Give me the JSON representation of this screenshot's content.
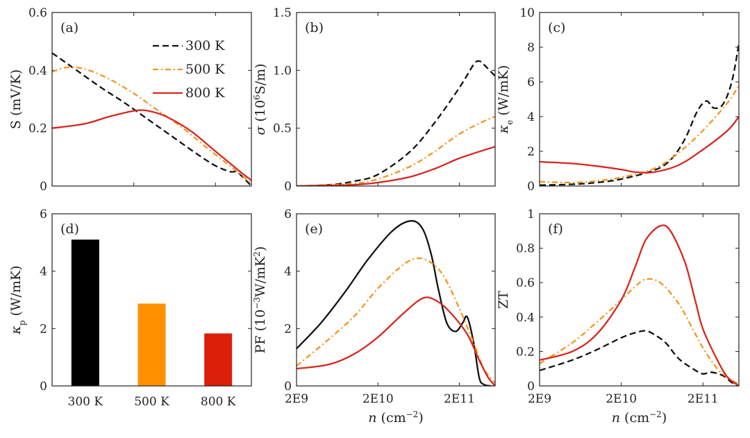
{
  "chart_data": {
    "type": "multi-panel",
    "series_styles": [
      {
        "name": "300 K",
        "color": "#111111",
        "dash": "dashed"
      },
      {
        "name": "500 K",
        "color": "#f7941d",
        "dash": "dashdot"
      },
      {
        "name": "800 K",
        "color": "#d7261e",
        "dash": "solid"
      }
    ],
    "panels": [
      {
        "id": "a",
        "label": "(a)",
        "type": "line",
        "xscale": "log",
        "xlim": [
          2000000000.0,
          550000000000.0
        ],
        "ylim": [
          0,
          0.6
        ],
        "ylabel": "S (mV/K)",
        "yticks": [
          0,
          0.2,
          0.4,
          0.6
        ],
        "yticklabels": [
          "0",
          "0.2",
          "0.4",
          "0.6"
        ],
        "xticks": [
          2000000000.0,
          20000000000.0,
          200000000000.0
        ],
        "xticklabels": [],
        "legend": [
          "300 K",
          "500 K",
          "800 K"
        ],
        "series": [
          {
            "name": "300 K",
            "x": [
              2000000000.0,
              4000000000.0,
              8000000000.0,
              15000000000.0,
              30000000000.0,
              60000000000.0,
              120000000000.0,
              200000000000.0,
              300000000000.0,
              350000000000.0,
              400000000000.0,
              550000000000.0
            ],
            "y": [
              0.46,
              0.4,
              0.34,
              0.29,
              0.23,
              0.17,
              0.11,
              0.07,
              0.05,
              0.05,
              0.04,
              0.0
            ]
          },
          {
            "name": "500 K",
            "x": [
              2000000000.0,
              3000000000.0,
              5000000000.0,
              10000000000.0,
              20000000000.0,
              40000000000.0,
              80000000000.0,
              160000000000.0,
              300000000000.0,
              550000000000.0
            ],
            "y": [
              0.395,
              0.41,
              0.405,
              0.37,
              0.32,
              0.26,
              0.2,
              0.13,
              0.07,
              0.01
            ]
          },
          {
            "name": "800 K",
            "x": [
              2000000000.0,
              5000000000.0,
              10000000000.0,
              20000000000.0,
              30000000000.0,
              50000000000.0,
              100000000000.0,
              200000000000.0,
              400000000000.0,
              550000000000.0
            ],
            "y": [
              0.2,
              0.215,
              0.24,
              0.26,
              0.26,
              0.24,
              0.19,
              0.12,
              0.05,
              0.02
            ]
          }
        ]
      },
      {
        "id": "b",
        "label": "(b)",
        "type": "line",
        "xscale": "log",
        "xlim": [
          2000000000.0,
          550000000000.0
        ],
        "ylim": [
          0,
          1.5
        ],
        "ylabel_parts": [
          {
            "t": "σ",
            "it": true
          },
          {
            "t": " (10"
          },
          {
            "t": "6",
            "sup": true
          },
          {
            "t": "S/m)"
          }
        ],
        "yticks": [
          0,
          0.5,
          1.0,
          1.5
        ],
        "yticklabels": [
          "0",
          "0.5",
          "1.0",
          "1.5"
        ],
        "xticks": [
          2000000000.0,
          20000000000.0,
          200000000000.0
        ],
        "xticklabels": [],
        "series": [
          {
            "name": "300 K",
            "x": [
              2000000000.0,
              5000000000.0,
              10000000000.0,
              20000000000.0,
              50000000000.0,
              100000000000.0,
              200000000000.0,
              300000000000.0,
              350000000000.0,
              400000000000.0,
              550000000000.0
            ],
            "y": [
              0.0,
              0.01,
              0.04,
              0.1,
              0.3,
              0.55,
              0.85,
              1.05,
              1.08,
              1.05,
              0.95
            ]
          },
          {
            "name": "500 K",
            "x": [
              2000000000.0,
              5000000000.0,
              10000000000.0,
              20000000000.0,
              50000000000.0,
              100000000000.0,
              200000000000.0,
              400000000000.0,
              550000000000.0
            ],
            "y": [
              0.0,
              0.01,
              0.02,
              0.06,
              0.17,
              0.3,
              0.45,
              0.56,
              0.6
            ]
          },
          {
            "name": "800 K",
            "x": [
              2000000000.0,
              5000000000.0,
              10000000000.0,
              20000000000.0,
              50000000000.0,
              100000000000.0,
              200000000000.0,
              400000000000.0,
              550000000000.0
            ],
            "y": [
              0.0,
              0.005,
              0.01,
              0.03,
              0.08,
              0.15,
              0.24,
              0.31,
              0.34
            ]
          }
        ]
      },
      {
        "id": "c",
        "label": "(c)",
        "type": "line",
        "xscale": "log",
        "xlim": [
          2000000000.0,
          550000000000.0
        ],
        "ylim": [
          0,
          10
        ],
        "ylabel_parts": [
          {
            "t": "κ",
            "it": true
          },
          {
            "t": "e",
            "sub": true
          },
          {
            "t": " (W/mK)"
          }
        ],
        "yticks": [
          0,
          2,
          4,
          6,
          8,
          10
        ],
        "yticklabels": [
          "0",
          "2",
          "4",
          "6",
          "8",
          "10"
        ],
        "xticks": [
          2000000000.0,
          20000000000.0,
          200000000000.0
        ],
        "xticklabels": [],
        "series": [
          {
            "name": "300 K",
            "x": [
              2000000000.0,
              5000000000.0,
              10000000000.0,
              20000000000.0,
              50000000000.0,
              80000000000.0,
              120000000000.0,
              170000000000.0,
              220000000000.0,
              270000000000.0,
              350000000000.0,
              450000000000.0,
              550000000000.0
            ],
            "y": [
              0.05,
              0.1,
              0.2,
              0.4,
              0.9,
              1.5,
              2.7,
              4.3,
              4.9,
              4.5,
              4.7,
              6.0,
              8.2
            ]
          },
          {
            "name": "500 K",
            "x": [
              2000000000.0,
              5000000000.0,
              10000000000.0,
              20000000000.0,
              50000000000.0,
              100000000000.0,
              200000000000.0,
              400000000000.0,
              550000000000.0
            ],
            "y": [
              0.25,
              0.2,
              0.3,
              0.5,
              1.0,
              1.9,
              3.2,
              4.8,
              5.8
            ]
          },
          {
            "name": "800 K",
            "x": [
              2000000000.0,
              5000000000.0,
              10000000000.0,
              20000000000.0,
              30000000000.0,
              50000000000.0,
              100000000000.0,
              200000000000.0,
              400000000000.0,
              550000000000.0
            ],
            "y": [
              1.4,
              1.3,
              1.15,
              0.95,
              0.8,
              0.8,
              1.2,
              2.1,
              3.2,
              4.0
            ]
          }
        ]
      },
      {
        "id": "d",
        "label": "(d)",
        "type": "bar",
        "ylim": [
          0,
          6
        ],
        "ylabel_parts": [
          {
            "t": "κ",
            "it": true
          },
          {
            "t": "p",
            "sub": true
          },
          {
            "t": " (W/mK)"
          }
        ],
        "yticks": [
          0,
          2,
          4,
          6
        ],
        "yticklabels": [
          "0",
          "2",
          "4",
          "6"
        ],
        "categories": [
          "300 K",
          "500 K",
          "800 K"
        ],
        "values": [
          5.1,
          2.87,
          1.83
        ],
        "colors": [
          "#000000",
          "#ff9100",
          "#dc1f0a"
        ]
      },
      {
        "id": "e",
        "label": "(e)",
        "type": "line",
        "xscale": "log",
        "xlim": [
          2000000000.0,
          550000000000.0
        ],
        "ylim": [
          0,
          6
        ],
        "ylabel_parts": [
          {
            "t": "PF (10"
          },
          {
            "t": "−3",
            "sup": true
          },
          {
            "t": "W/mK"
          },
          {
            "t": "2",
            "sup": true
          },
          {
            "t": ")"
          }
        ],
        "yticks": [
          0,
          2,
          4,
          6
        ],
        "yticklabels": [
          "0",
          "2",
          "4",
          "6"
        ],
        "xticks": [
          2000000000.0,
          20000000000.0,
          200000000000.0
        ],
        "xticklabels": [
          "2E9",
          "2E10",
          "2E11"
        ],
        "xlabel_parts": [
          {
            "t": "n",
            "it": true
          },
          {
            "t": " (cm"
          },
          {
            "t": "−2",
            "sup": true
          },
          {
            "t": ")"
          }
        ],
        "series": [
          {
            "name": "300 K",
            "dash": "solid",
            "x": [
              2000000000.0,
              4000000000.0,
              8000000000.0,
              15000000000.0,
              30000000000.0,
              50000000000.0,
              70000000000.0,
              90000000000.0,
              110000000000.0,
              140000000000.0,
              180000000000.0,
              220000000000.0,
              250000000000.0,
              300000000000.0,
              350000000000.0,
              400000000000.0,
              500000000000.0
            ],
            "y": [
              1.3,
              2.2,
              3.3,
              4.4,
              5.4,
              5.75,
              5.5,
              4.6,
              3.4,
              2.2,
              1.9,
              2.2,
              2.4,
              1.5,
              0.3,
              0.05,
              0.0
            ]
          },
          {
            "name": "500 K",
            "x": [
              2000000000.0,
              4000000000.0,
              10000000000.0,
              20000000000.0,
              40000000000.0,
              60000000000.0,
              90000000000.0,
              130000000000.0,
              200000000000.0,
              300000000000.0,
              400000000000.0,
              550000000000.0
            ],
            "y": [
              0.7,
              1.4,
              2.4,
              3.4,
              4.2,
              4.45,
              4.3,
              3.8,
              2.7,
              1.5,
              0.6,
              0.1
            ]
          },
          {
            "name": "800 K",
            "x": [
              2000000000.0,
              5000000000.0,
              10000000000.0,
              20000000000.0,
              40000000000.0,
              70000000000.0,
              100000000000.0,
              150000000000.0,
              250000000000.0,
              350000000000.0,
              450000000000.0,
              550000000000.0
            ],
            "y": [
              0.6,
              0.75,
              1.1,
              1.7,
              2.5,
              3.05,
              3.0,
              2.6,
              1.8,
              0.9,
              0.3,
              0.0
            ]
          }
        ]
      },
      {
        "id": "f",
        "label": "(f)",
        "type": "line",
        "xscale": "log",
        "xlim": [
          2000000000.0,
          550000000000.0
        ],
        "ylim": [
          0,
          1
        ],
        "ylabel": "ZT",
        "yticks": [
          0,
          0.2,
          0.4,
          0.6,
          0.8,
          1
        ],
        "yticklabels": [
          "0",
          "0.2",
          "0.4",
          "0.6",
          "0.8",
          "1"
        ],
        "xticks": [
          2000000000.0,
          20000000000.0,
          200000000000.0
        ],
        "xticklabels": [
          "2E9",
          "2E10",
          "2E11"
        ],
        "xlabel_parts": [
          {
            "t": "n",
            "it": true
          },
          {
            "t": " (cm"
          },
          {
            "t": "−2",
            "sup": true
          },
          {
            "t": ")"
          }
        ],
        "series": [
          {
            "name": "300 K",
            "x": [
              2000000000.0,
              5000000000.0,
              10000000000.0,
              20000000000.0,
              30000000000.0,
              40000000000.0,
              50000000000.0,
              70000000000.0,
              100000000000.0,
              150000000000.0,
              200000000000.0,
              250000000000.0,
              350000000000.0,
              450000000000.0,
              550000000000.0
            ],
            "y": [
              0.09,
              0.15,
              0.21,
              0.28,
              0.31,
              0.32,
              0.3,
              0.25,
              0.16,
              0.1,
              0.07,
              0.08,
              0.06,
              0.02,
              0.0
            ]
          },
          {
            "name": "500 K",
            "x": [
              2000000000.0,
              5000000000.0,
              10000000000.0,
              20000000000.0,
              30000000000.0,
              40000000000.0,
              60000000000.0,
              100000000000.0,
              150000000000.0,
              200000000000.0,
              300000000000.0,
              400000000000.0,
              550000000000.0
            ],
            "y": [
              0.13,
              0.25,
              0.37,
              0.5,
              0.58,
              0.62,
              0.6,
              0.48,
              0.33,
              0.22,
              0.1,
              0.05,
              0.01
            ]
          },
          {
            "name": "800 K",
            "x": [
              2000000000.0,
              5000000000.0,
              10000000000.0,
              20000000000.0,
              30000000000.0,
              40000000000.0,
              60000000000.0,
              80000000000.0,
              120000000000.0,
              160000000000.0,
              200000000000.0,
              300000000000.0,
              400000000000.0,
              550000000000.0
            ],
            "y": [
              0.15,
              0.2,
              0.3,
              0.5,
              0.7,
              0.85,
              0.93,
              0.9,
              0.72,
              0.5,
              0.33,
              0.15,
              0.05,
              0.0
            ]
          }
        ]
      }
    ]
  }
}
